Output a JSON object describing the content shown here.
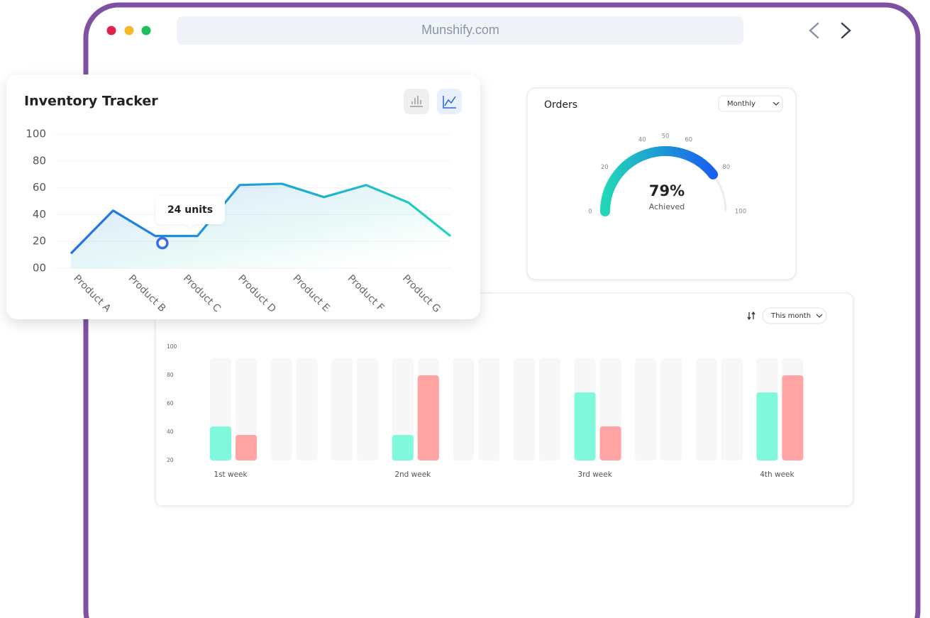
{
  "browser": {
    "url": "Munshify.com"
  },
  "chart_data": [
    {
      "type": "line",
      "title": "Inventory Tracker",
      "x": [
        0,
        1,
        2,
        3,
        4,
        5,
        6,
        7,
        8,
        9
      ],
      "values": [
        11,
        43,
        24,
        24,
        62,
        63,
        53,
        62,
        49,
        24
      ],
      "xlim": [
        0,
        9
      ],
      "xticks": [
        {
          "value": 0,
          "label": "Product A"
        },
        {
          "value": 1.3,
          "label": "Product B"
        },
        {
          "value": 2.6,
          "label": "Product C"
        },
        {
          "value": 3.9,
          "label": "Product D"
        },
        {
          "value": 5.2,
          "label": "Product E"
        },
        {
          "value": 6.5,
          "label": "Product F"
        },
        {
          "value": 7.8,
          "label": "Product G"
        }
      ],
      "ylim": [
        0,
        100
      ],
      "yticks": [
        100,
        80,
        60,
        40,
        20,
        {
          "value": 0,
          "label": "00"
        }
      ],
      "grid": true,
      "colors": [
        "#1f6fe8",
        "#21d4c0"
      ],
      "annotation": "24 units"
    },
    {
      "type": "gauge",
      "title": "Orders",
      "filter": "Monthly",
      "value": 79,
      "value_label": "79%",
      "label": "Achieved",
      "ylim": [
        0,
        100
      ],
      "yticks": [
        0,
        20,
        40,
        50,
        60,
        80,
        100
      ],
      "colors": [
        "#22d6b8",
        "#1a5ff0"
      ]
    },
    {
      "type": "bar",
      "filter": "This month",
      "categories": [
        "1st week",
        null,
        null,
        "2nd week",
        null,
        null,
        "3rd week",
        null,
        null,
        "4th week"
      ],
      "series": [
        {
          "color": "#80f8dc",
          "values": [
            44,
            null,
            null,
            38,
            null,
            null,
            68,
            null,
            null,
            68
          ]
        },
        {
          "color": "#ffa3a3",
          "values": [
            38,
            null,
            null,
            80,
            null,
            null,
            44,
            null,
            null,
            80
          ]
        }
      ],
      "ylim": [
        20,
        100
      ],
      "yticks": [
        100,
        80,
        60,
        40,
        20
      ]
    }
  ]
}
